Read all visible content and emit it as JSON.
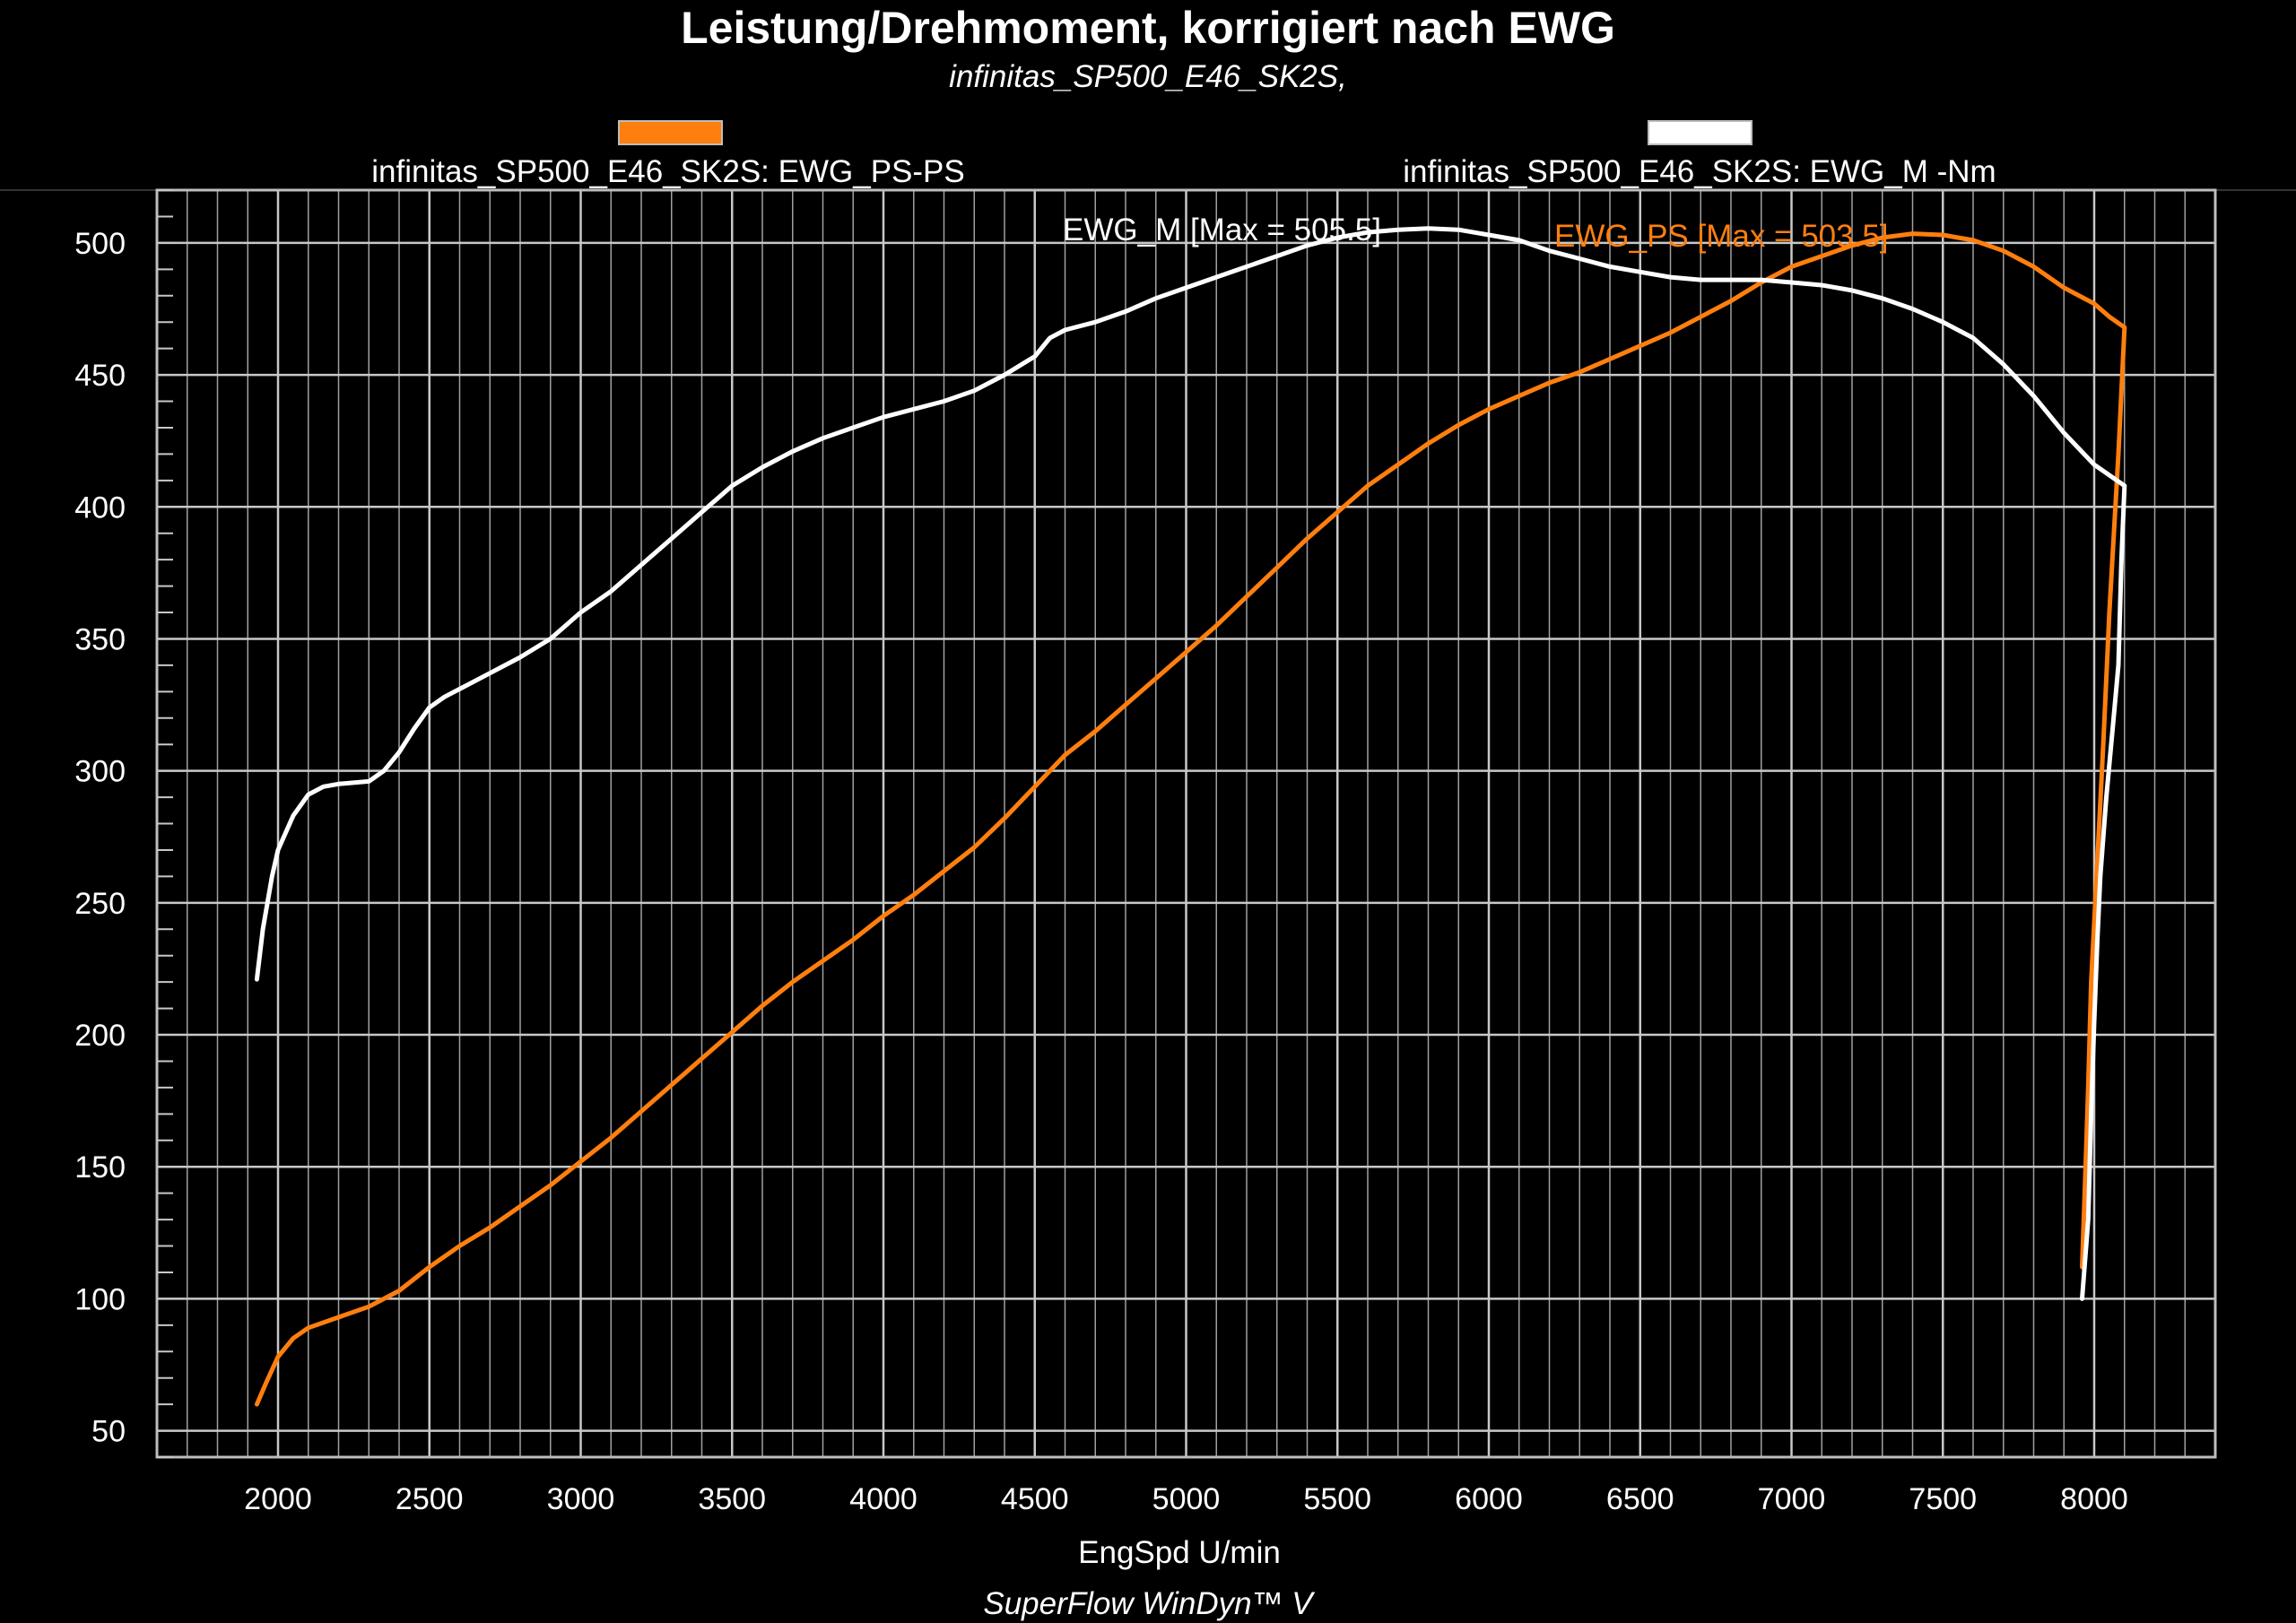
{
  "title": "Leistung/Drehmoment, korrigiert nach EWG",
  "subtitle": "infinitas_SP500_E46_SK2S,",
  "footer": "SuperFlow WinDyn™ V",
  "colors": {
    "background": "#000000",
    "grid": "#bdbdbd",
    "power": "#ff7f0e",
    "torque": "#ffffff"
  },
  "chart_data": {
    "type": "line",
    "title": "Leistung/Drehmoment, korrigiert nach EWG",
    "subtitle": "infinitas_SP500_E46_SK2S,",
    "xlabel": "EngSpd U/min",
    "ylabel": "",
    "xlim": [
      1600,
      8400
    ],
    "ylim": [
      40,
      520
    ],
    "xticks": [
      2000,
      2500,
      3000,
      3500,
      4000,
      4500,
      5000,
      5500,
      6000,
      6500,
      7000,
      7500,
      8000
    ],
    "yticks": [
      50,
      100,
      150,
      200,
      250,
      300,
      350,
      400,
      450,
      500
    ],
    "grid": true,
    "legend_position": "top",
    "series": [
      {
        "name": "infinitas_SP500_E46_SK2S: EWG_PS-PS",
        "color": "#ff7f0e",
        "annotation": "EWG_PS [Max = 503.5]",
        "x": [
          1930,
          1960,
          2000,
          2050,
          2100,
          2200,
          2300,
          2400,
          2500,
          2600,
          2700,
          2800,
          2900,
          3000,
          3100,
          3200,
          3300,
          3400,
          3500,
          3600,
          3700,
          3800,
          3900,
          4000,
          4100,
          4200,
          4300,
          4400,
          4500,
          4600,
          4700,
          4800,
          4900,
          5000,
          5100,
          5200,
          5300,
          5400,
          5500,
          5600,
          5700,
          5800,
          5900,
          6000,
          6100,
          6200,
          6300,
          6400,
          6500,
          6600,
          6700,
          6800,
          6900,
          7000,
          7100,
          7200,
          7300,
          7400,
          7500,
          7550,
          7600,
          7700,
          7800,
          7900,
          8000,
          8050,
          8100,
          8080,
          8050,
          8030,
          8010,
          7990,
          7980,
          7970,
          7960
        ],
        "y": [
          60,
          68,
          78,
          85,
          89,
          93,
          97,
          103,
          112,
          120,
          127,
          135,
          143,
          152,
          161,
          171,
          181,
          191,
          201,
          211,
          220,
          228,
          236,
          245,
          253,
          262,
          271,
          282,
          294,
          306,
          315,
          325,
          335,
          345,
          355,
          366,
          377,
          388,
          398,
          408,
          416,
          424,
          431,
          437,
          442,
          447,
          451,
          456,
          461,
          466,
          472,
          478,
          485,
          491,
          495,
          499,
          502,
          503.5,
          503,
          502,
          501,
          497,
          491,
          483,
          477,
          472,
          468,
          420,
          360,
          310,
          265,
          220,
          180,
          145,
          112
        ]
      },
      {
        "name": "infinitas_SP500_E46_SK2S: EWG_M -Nm",
        "color": "#ffffff",
        "annotation": "EWG_M  [Max = 505.5]",
        "x": [
          1930,
          1950,
          1980,
          2000,
          2050,
          2100,
          2150,
          2200,
          2300,
          2350,
          2400,
          2450,
          2500,
          2550,
          2600,
          2700,
          2800,
          2900,
          2950,
          3000,
          3100,
          3200,
          3300,
          3400,
          3500,
          3600,
          3700,
          3800,
          3900,
          4000,
          4100,
          4200,
          4300,
          4400,
          4500,
          4550,
          4600,
          4700,
          4800,
          4900,
          5000,
          5100,
          5200,
          5300,
          5400,
          5500,
          5600,
          5700,
          5800,
          5900,
          6000,
          6100,
          6200,
          6300,
          6400,
          6500,
          6600,
          6700,
          6800,
          6900,
          7000,
          7100,
          7200,
          7300,
          7400,
          7500,
          7600,
          7700,
          7800,
          7900,
          8000,
          8050,
          8100,
          8090,
          8080,
          8060,
          8040,
          8020,
          8010,
          8000,
          7990,
          7980,
          7960
        ],
        "y": [
          221,
          240,
          260,
          270,
          283,
          291,
          294,
          295,
          296,
          300,
          307,
          316,
          324,
          328,
          331,
          337,
          343,
          350,
          355,
          360,
          368,
          378,
          388,
          398,
          408,
          415,
          421,
          426,
          430,
          434,
          437,
          440,
          444,
          450,
          457,
          464,
          467,
          470,
          474,
          479,
          483,
          487,
          491,
          495,
          499,
          502,
          504,
          505,
          505.5,
          505,
          503,
          501,
          497,
          494,
          491,
          489,
          487,
          486,
          486,
          486,
          485,
          484,
          482,
          479,
          475,
          470,
          464,
          454,
          442,
          428,
          416,
          412,
          408,
          380,
          340,
          315,
          290,
          260,
          235,
          205,
          170,
          130,
          100
        ]
      }
    ]
  }
}
